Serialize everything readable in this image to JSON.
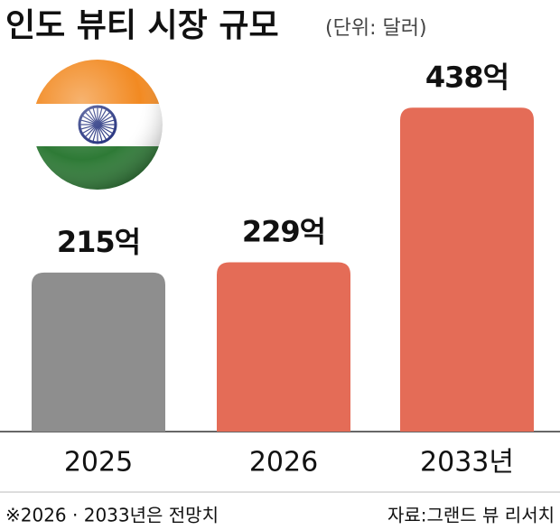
{
  "chart_data": {
    "type": "bar",
    "title": "인도 뷰티 시장 규모",
    "subtitle": "(단위: 달러)",
    "categories": [
      "2025",
      "2026",
      "2033년"
    ],
    "values": [
      215,
      229,
      438
    ],
    "value_labels": [
      "215억",
      "229억",
      "438억"
    ],
    "colors": [
      "#8e8e8e",
      "#e46c57",
      "#e46c57"
    ],
    "footnote": "※2026 · 2033년은 전망치",
    "source": "자료:그랜드 뷰 리서치"
  }
}
